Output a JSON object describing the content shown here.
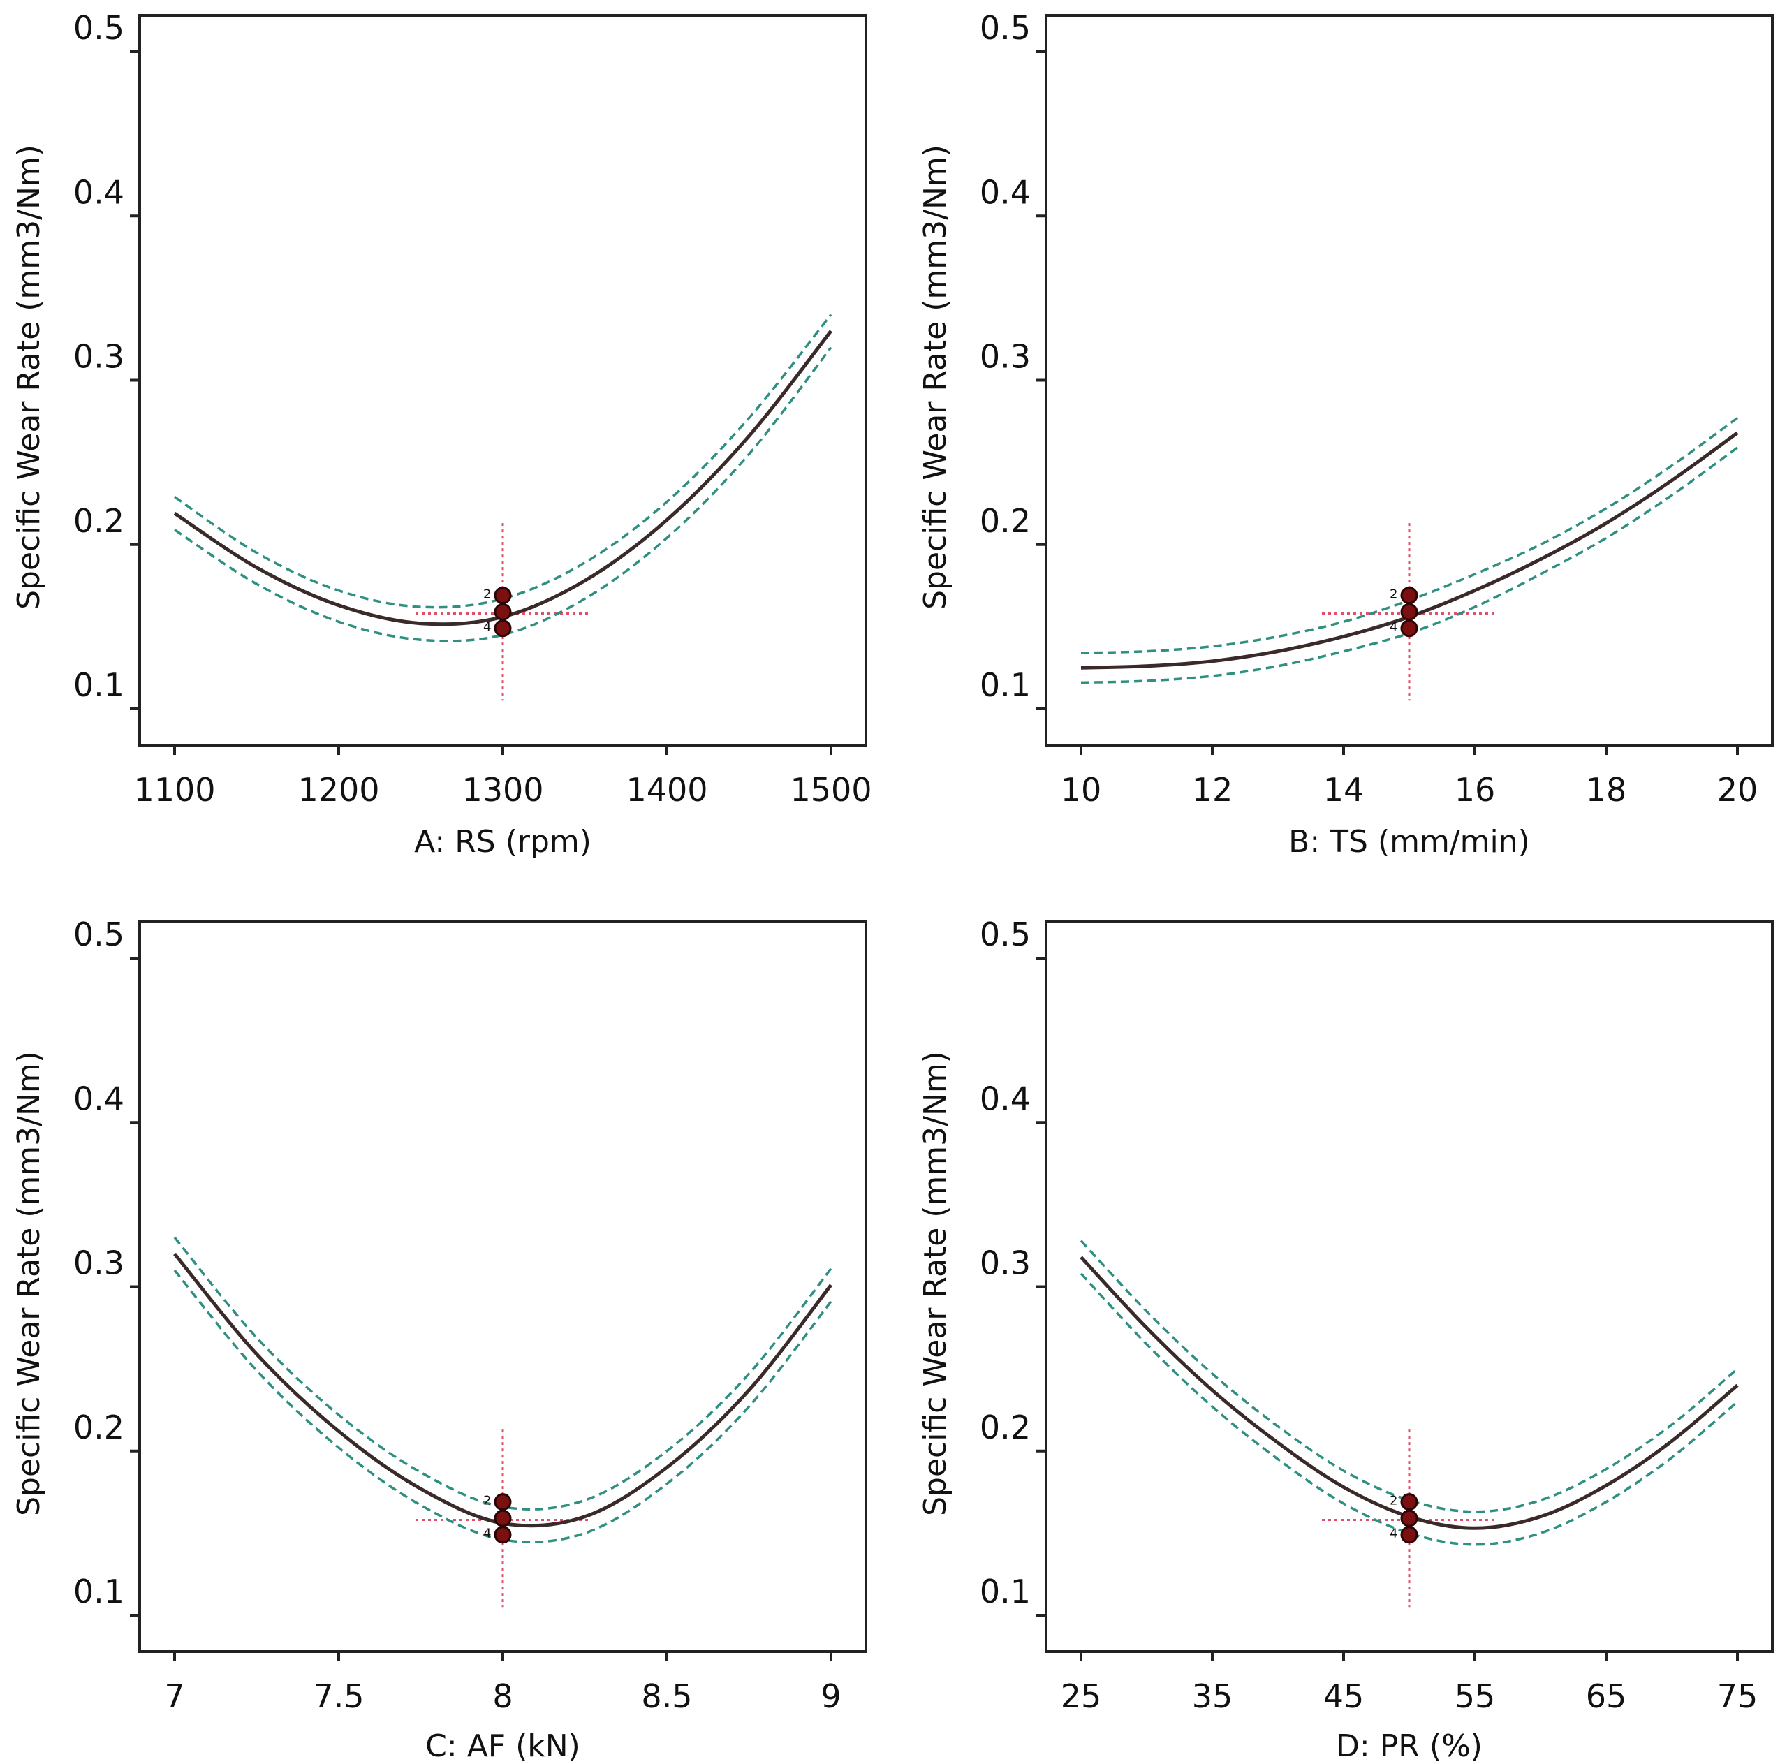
{
  "chart_data": [
    {
      "type": "line",
      "xlabel": "A: RS (rpm)",
      "ylabel": "Specific Wear Rate (mm3/Nm)",
      "xlim": [
        1100,
        1500
      ],
      "ylim": [
        0.1,
        0.5
      ],
      "xticks": [
        "1100",
        "1200",
        "1300",
        "1400",
        "1500"
      ],
      "yticks": [
        "0.1",
        "0.2",
        "0.3",
        "0.4",
        "0.5"
      ],
      "series": [
        {
          "role": "prediction",
          "x": [
            1100,
            1150,
            1200,
            1250,
            1300,
            1350,
            1400,
            1450,
            1500
          ],
          "y": [
            0.219,
            0.186,
            0.163,
            0.152,
            0.156,
            0.178,
            0.215,
            0.266,
            0.33
          ]
        },
        {
          "role": "ci-upper",
          "x": [
            1100,
            1150,
            1200,
            1250,
            1300,
            1350,
            1400,
            1450,
            1500
          ],
          "y": [
            0.229,
            0.195,
            0.172,
            0.162,
            0.167,
            0.189,
            0.226,
            0.277,
            0.34
          ]
        },
        {
          "role": "ci-lower",
          "x": [
            1100,
            1150,
            1200,
            1250,
            1300,
            1350,
            1400,
            1450,
            1500
          ],
          "y": [
            0.209,
            0.176,
            0.153,
            0.142,
            0.145,
            0.167,
            0.204,
            0.255,
            0.32
          ]
        }
      ],
      "design_points": {
        "x": 1300,
        "y": [
          0.169,
          0.159,
          0.149
        ],
        "labels": [
          "2",
          "",
          "4"
        ]
      },
      "crosshair": {
        "x": 1300,
        "y": 0.158
      }
    },
    {
      "type": "line",
      "xlabel": "B: TS (mm/min)",
      "ylabel": "Specific Wear Rate (mm3/Nm)",
      "xlim": [
        10,
        20
      ],
      "ylim": [
        0.1,
        0.5
      ],
      "xticks": [
        "10",
        "12",
        "14",
        "16",
        "18",
        "20"
      ],
      "yticks": [
        "0.1",
        "0.2",
        "0.3",
        "0.4",
        "0.5"
      ],
      "series": [
        {
          "role": "prediction",
          "x": [
            10,
            11,
            12,
            13,
            14,
            15,
            16,
            17,
            18,
            19,
            20
          ],
          "y": [
            0.125,
            0.126,
            0.129,
            0.135,
            0.144,
            0.156,
            0.172,
            0.191,
            0.213,
            0.239,
            0.268
          ]
        },
        {
          "role": "ci-upper",
          "x": [
            10,
            11,
            12,
            13,
            14,
            15,
            16,
            17,
            18,
            19,
            20
          ],
          "y": [
            0.134,
            0.135,
            0.138,
            0.144,
            0.153,
            0.166,
            0.182,
            0.2,
            0.222,
            0.248,
            0.277
          ]
        },
        {
          "role": "ci-lower",
          "x": [
            10,
            11,
            12,
            13,
            14,
            15,
            16,
            17,
            18,
            19,
            20
          ],
          "y": [
            0.116,
            0.117,
            0.12,
            0.126,
            0.135,
            0.146,
            0.162,
            0.182,
            0.204,
            0.23,
            0.259
          ]
        }
      ],
      "design_points": {
        "x": 15,
        "y": [
          0.169,
          0.159,
          0.149
        ],
        "labels": [
          "2",
          "",
          "4"
        ]
      },
      "crosshair": {
        "x": 15,
        "y": 0.158
      }
    },
    {
      "type": "line",
      "xlabel": "C: AF (kN)",
      "ylabel": "Specific Wear Rate (mm3/Nm)",
      "xlim": [
        7,
        9
      ],
      "ylim": [
        0.1,
        0.5
      ],
      "xticks": [
        "7",
        "7.5",
        "8",
        "8.5",
        "9"
      ],
      "yticks": [
        "0.1",
        "0.2",
        "0.3",
        "0.4",
        "0.5"
      ],
      "series": [
        {
          "role": "prediction",
          "x": [
            7,
            7.25,
            7.5,
            7.75,
            8,
            8.25,
            8.5,
            8.75,
            9
          ],
          "y": [
            0.32,
            0.259,
            0.212,
            0.177,
            0.156,
            0.16,
            0.19,
            0.237,
            0.301
          ]
        },
        {
          "role": "ci-upper",
          "x": [
            7,
            7.25,
            7.5,
            7.75,
            8,
            8.25,
            8.5,
            8.75,
            9
          ],
          "y": [
            0.33,
            0.269,
            0.222,
            0.187,
            0.166,
            0.17,
            0.2,
            0.247,
            0.311
          ]
        },
        {
          "role": "ci-lower",
          "x": [
            7,
            7.25,
            7.5,
            7.75,
            8,
            8.25,
            8.5,
            8.75,
            9
          ],
          "y": [
            0.31,
            0.249,
            0.202,
            0.167,
            0.146,
            0.15,
            0.18,
            0.227,
            0.291
          ]
        }
      ],
      "design_points": {
        "x": 8,
        "y": [
          0.169,
          0.159,
          0.149
        ],
        "labels": [
          "2",
          "",
          "4"
        ]
      },
      "crosshair": {
        "x": 8,
        "y": 0.158
      }
    },
    {
      "type": "line",
      "xlabel": "D: PR (%)",
      "ylabel": "Specific Wear Rate (mm3/Nm)",
      "xlim": [
        25,
        75
      ],
      "ylim": [
        0.1,
        0.5
      ],
      "xticks": [
        "25",
        "35",
        "45",
        "55",
        "65",
        "75"
      ],
      "yticks": [
        "0.1",
        "0.2",
        "0.3",
        "0.4",
        "0.5"
      ],
      "series": [
        {
          "role": "prediction",
          "x": [
            25,
            30,
            35,
            40,
            45,
            50,
            55,
            60,
            65,
            70,
            75
          ],
          "y": [
            0.318,
            0.275,
            0.237,
            0.205,
            0.178,
            0.16,
            0.153,
            0.16,
            0.179,
            0.206,
            0.24
          ]
        },
        {
          "role": "ci-upper",
          "x": [
            25,
            30,
            35,
            40,
            45,
            50,
            55,
            60,
            65,
            70,
            75
          ],
          "y": [
            0.328,
            0.285,
            0.247,
            0.215,
            0.188,
            0.17,
            0.163,
            0.17,
            0.189,
            0.216,
            0.25
          ]
        },
        {
          "role": "ci-lower",
          "x": [
            25,
            30,
            35,
            40,
            45,
            50,
            55,
            60,
            65,
            70,
            75
          ],
          "y": [
            0.308,
            0.265,
            0.227,
            0.195,
            0.168,
            0.15,
            0.143,
            0.15,
            0.169,
            0.196,
            0.23
          ]
        }
      ],
      "design_points": {
        "x": 50,
        "y": [
          0.169,
          0.159,
          0.149
        ],
        "labels": [
          "2",
          "",
          "4"
        ]
      },
      "crosshair": {
        "x": 50,
        "y": 0.158
      }
    }
  ],
  "colors": {
    "prediction": "#3a2a2a",
    "ci_band": "#2f8f80",
    "crosshair": "#e0506a",
    "design_point": "#7a1010",
    "axis": "#222222"
  }
}
